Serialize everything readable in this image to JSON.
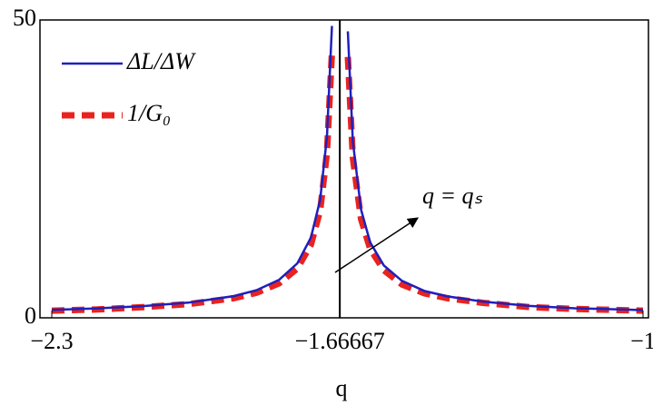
{
  "chart_data": {
    "type": "line",
    "x_label": "q",
    "x": [
      -2.3,
      -2.2,
      -2.1,
      -2.0,
      -1.9,
      -1.85,
      -1.8,
      -1.76,
      -1.73,
      -1.71,
      -1.695,
      -1.684,
      -1.66667,
      -1.649,
      -1.638,
      -1.62,
      -1.6,
      -1.57,
      -1.53,
      -1.48,
      -1.43,
      -1.35,
      -1.25,
      -1.15,
      -1.05,
      -1.0
    ],
    "series": [
      {
        "name": "ΔL/ΔW",
        "color": "#1f1fbf",
        "dashed": false,
        "values": [
          1.34,
          1.59,
          1.96,
          2.55,
          3.65,
          4.64,
          6.39,
          9.14,
          13.5,
          19.8,
          30.4,
          49.0,
          null,
          48.1,
          29.6,
          18.2,
          12.7,
          8.8,
          6.2,
          4.5,
          3.6,
          2.7,
          2.0,
          1.6,
          1.4,
          1.3
        ]
      },
      {
        "name": "1/G₀",
        "color": "#e8231f",
        "dashed": true,
        "values": [
          1.2,
          1.4,
          1.8,
          2.3,
          3.3,
          4.2,
          5.8,
          8.3,
          12.3,
          18.0,
          27.7,
          44.6,
          null,
          43.8,
          26.9,
          16.6,
          11.6,
          8.0,
          5.6,
          4.1,
          3.3,
          2.5,
          1.8,
          1.5,
          1.3,
          1.2
        ]
      }
    ],
    "xlim": [
      -2.326,
      -0.988
    ],
    "xticks": [
      {
        "value": -2.3,
        "label": "−2.3"
      },
      {
        "value": -1.66667,
        "label": "−1.66667"
      },
      {
        "value": -1,
        "label": "−1"
      }
    ],
    "ylim": [
      0,
      50
    ],
    "yticks": [
      0,
      50
    ],
    "annotation": "q = qₛ",
    "legend": "upper left"
  }
}
